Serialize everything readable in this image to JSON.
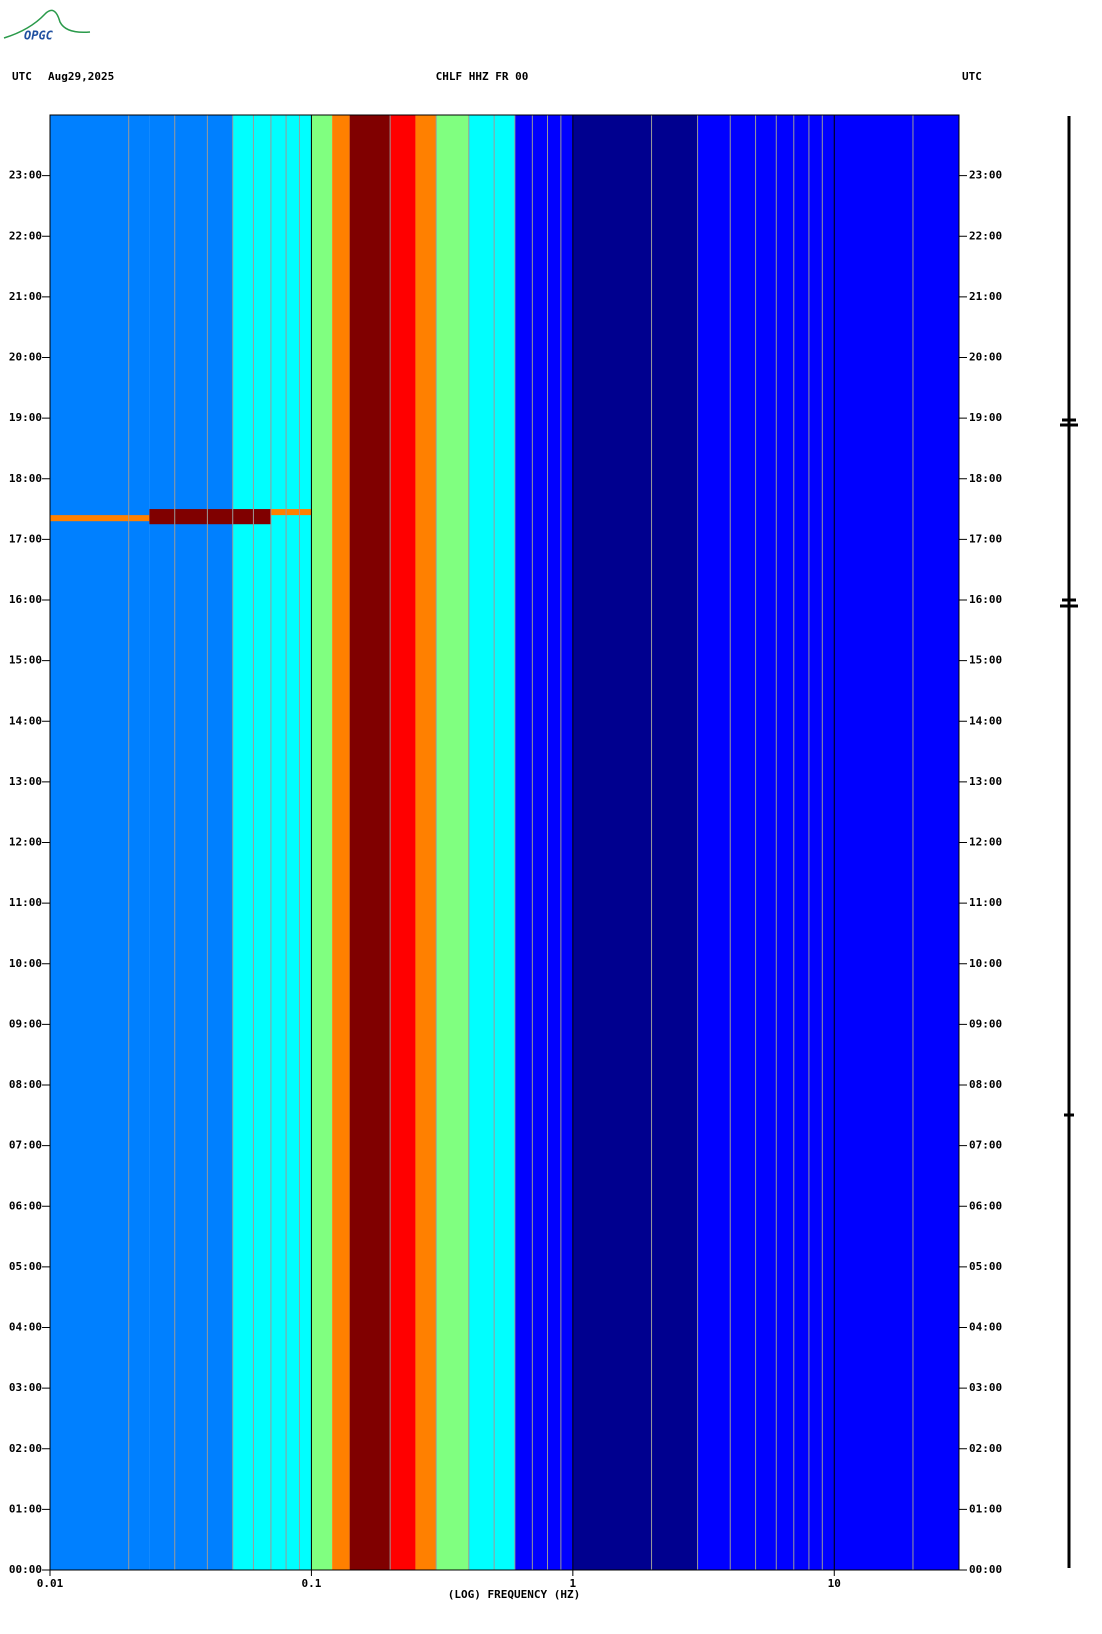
{
  "chart_data": {
    "type": "spectrogram",
    "logo": "OPGC",
    "title_left": "UTC",
    "date": "Aug29,2025",
    "title": "CHLF HHZ FR 00",
    "title_right": "UTC",
    "xlabel": "(LOG) FREQUENCY (HZ)",
    "xscale": "log",
    "xlim": [
      0.01,
      30
    ],
    "xticks": [
      0.01,
      0.1,
      1,
      10
    ],
    "xgrid": [
      0.02,
      0.03,
      0.04,
      0.05,
      0.06,
      0.07,
      0.08,
      0.09,
      0.2,
      0.3,
      0.4,
      0.5,
      0.6,
      0.7,
      0.8,
      0.9,
      2,
      3,
      4,
      5,
      6,
      7,
      8,
      9,
      20
    ],
    "ylim": [
      0,
      24
    ],
    "yticks": [
      {
        "value": 0,
        "label": "00:00"
      },
      {
        "value": 1,
        "label": "01:00"
      },
      {
        "value": 2,
        "label": "02:00"
      },
      {
        "value": 3,
        "label": "03:00"
      },
      {
        "value": 4,
        "label": "04:00"
      },
      {
        "value": 5,
        "label": "05:00"
      },
      {
        "value": 6,
        "label": "06:00"
      },
      {
        "value": 7,
        "label": "07:00"
      },
      {
        "value": 8,
        "label": "08:00"
      },
      {
        "value": 9,
        "label": "09:00"
      },
      {
        "value": 10,
        "label": "10:00"
      },
      {
        "value": 11,
        "label": "11:00"
      },
      {
        "value": 12,
        "label": "12:00"
      },
      {
        "value": 13,
        "label": "13:00"
      },
      {
        "value": 14,
        "label": "14:00"
      },
      {
        "value": 15,
        "label": "15:00"
      },
      {
        "value": 16,
        "label": "16:00"
      },
      {
        "value": 17,
        "label": "17:00"
      },
      {
        "value": 18,
        "label": "18:00"
      },
      {
        "value": 19,
        "label": "19:00"
      },
      {
        "value": 20,
        "label": "20:00"
      },
      {
        "value": 21,
        "label": "21:00"
      },
      {
        "value": 22,
        "label": "22:00"
      },
      {
        "value": 23,
        "label": "23:00"
      }
    ],
    "colormap": [
      "#00008f",
      "#0000ff",
      "#0080ff",
      "#00ffff",
      "#80ff80",
      "#ffff00",
      "#ff8000",
      "#ff0000",
      "#800000"
    ],
    "bins": [
      0.01,
      0.024,
      0.05,
      0.07,
      0.1,
      0.12,
      0.14,
      0.2,
      0.25,
      0.3,
      0.4,
      0.6,
      1,
      3,
      30
    ],
    "levels": [
      0.25,
      0.3,
      0.33,
      0.38,
      0.45,
      0.7,
      0.97,
      0.88,
      0.75,
      0.55,
      0.35,
      0.15,
      0.06,
      0.12
    ],
    "events": [
      {
        "time": 17.3,
        "duration": 0.1,
        "fmin": 0.01,
        "fmax": 0.024,
        "level": 0.8
      },
      {
        "time": 17.25,
        "duration": 0.25,
        "fmin": 0.024,
        "fmax": 0.07,
        "level": 1
      },
      {
        "time": 17.4,
        "duration": 0.1,
        "fmin": 0.07,
        "fmax": 0.1,
        "level": 0.8
      }
    ]
  }
}
